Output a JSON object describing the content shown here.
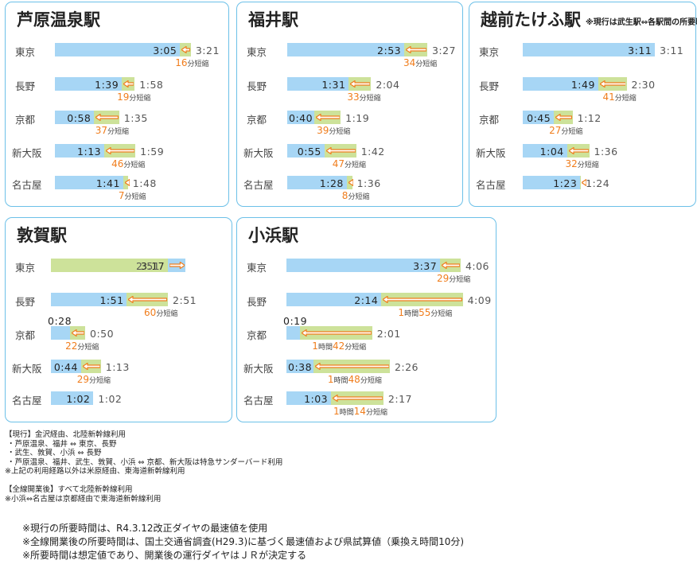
{
  "chart_data": [
    {
      "type": "bar",
      "title": "芦原温泉駅",
      "note": "",
      "categories": [
        "東京",
        "長野",
        "京都",
        "新大阪",
        "名古屋"
      ],
      "series": [
        {
          "name": "現行",
          "values": [
            "3:21",
            "1:58",
            "1:35",
            "1:59",
            "1:48"
          ],
          "minutes": [
            201,
            118,
            95,
            119,
            108
          ]
        },
        {
          "name": "全線開業後",
          "values": [
            "3:05",
            "1:39",
            "0:58",
            "1:13",
            "1:41"
          ],
          "minutes": [
            185,
            99,
            58,
            73,
            101
          ]
        }
      ],
      "saved": [
        {
          "h": "",
          "m": "16",
          "unit": "分短縮"
        },
        {
          "h": "",
          "m": "19",
          "unit": "分短縮"
        },
        {
          "h": "",
          "m": "37",
          "unit": "分短縮"
        },
        {
          "h": "",
          "m": "46",
          "unit": "分短縮"
        },
        {
          "h": "",
          "m": "7",
          "unit": "分短縮"
        }
      ]
    },
    {
      "type": "bar",
      "title": "福井駅",
      "note": "",
      "categories": [
        "東京",
        "長野",
        "京都",
        "新大阪",
        "名古屋"
      ],
      "series": [
        {
          "name": "現行",
          "values": [
            "3:27",
            "2:04",
            "1:19",
            "1:42",
            "1:36"
          ],
          "minutes": [
            207,
            124,
            79,
            102,
            96
          ]
        },
        {
          "name": "全線開業後",
          "values": [
            "2:53",
            "1:31",
            "0:40",
            "0:55",
            "1:28"
          ],
          "minutes": [
            173,
            91,
            40,
            55,
            88
          ]
        }
      ],
      "saved": [
        {
          "h": "",
          "m": "34",
          "unit": "分短縮"
        },
        {
          "h": "",
          "m": "33",
          "unit": "分短縮"
        },
        {
          "h": "",
          "m": "39",
          "unit": "分短縮"
        },
        {
          "h": "",
          "m": "47",
          "unit": "分短縮"
        },
        {
          "h": "",
          "m": "8",
          "unit": "分短縮"
        }
      ]
    },
    {
      "type": "bar",
      "title": "越前たけふ駅",
      "note": "※現行は武生駅⇔各駅間の所要時間",
      "categories": [
        "東京",
        "長野",
        "京都",
        "新大阪",
        "名古屋"
      ],
      "series": [
        {
          "name": "現行",
          "values": [
            "3:11",
            "2:30",
            "1:12",
            "1:36",
            "1:24"
          ],
          "minutes": [
            191,
            150,
            72,
            96,
            84
          ]
        },
        {
          "name": "全線開業後",
          "values": [
            "3:11",
            "1:49",
            "0:45",
            "1:04",
            "1:23"
          ],
          "minutes": [
            191,
            109,
            45,
            64,
            83
          ]
        }
      ],
      "saved": [
        null,
        {
          "h": "",
          "m": "41",
          "unit": "分短縮"
        },
        {
          "h": "",
          "m": "27",
          "unit": "分短縮"
        },
        {
          "h": "",
          "m": "32",
          "unit": "分短縮"
        },
        null
      ]
    },
    {
      "type": "bar",
      "title": "敦賀駅",
      "note": "",
      "categories": [
        "東京",
        "長野",
        "京都",
        "新大阪",
        "名古屋"
      ],
      "series": [
        {
          "name": "現行",
          "values": [
            "2:51",
            "2:51",
            "0:50",
            "1:13",
            "1:02"
          ],
          "minutes": [
            171,
            171,
            50,
            73,
            62
          ]
        },
        {
          "name": "全線開業後",
          "values": [
            "3:17",
            "1:51",
            "0:28",
            "0:44",
            "1:02"
          ],
          "minutes": [
            197,
            111,
            28,
            44,
            62
          ]
        }
      ],
      "saved": [
        null,
        {
          "h": "",
          "m": "60",
          "unit": "分短縮"
        },
        {
          "h": "",
          "m": "22",
          "unit": "分短縮"
        },
        {
          "h": "",
          "m": "29",
          "unit": "分短縮"
        },
        null
      ]
    },
    {
      "type": "bar",
      "title": "小浜駅",
      "note": "",
      "categories": [
        "東京",
        "長野",
        "京都",
        "新大阪",
        "名古屋"
      ],
      "series": [
        {
          "name": "現行",
          "values": [
            "4:06",
            "4:09",
            "2:01",
            "2:26",
            "2:17"
          ],
          "minutes": [
            246,
            249,
            121,
            146,
            137
          ]
        },
        {
          "name": "全線開業後",
          "values": [
            "3:37",
            "2:14",
            "0:19",
            "0:38",
            "1:03"
          ],
          "minutes": [
            217,
            134,
            19,
            38,
            63
          ]
        }
      ],
      "saved": [
        {
          "h": "",
          "m": "29",
          "unit": "分短縮"
        },
        {
          "h": "1",
          "m": "55",
          "unit": "分短縮"
        },
        {
          "h": "1",
          "m": "42",
          "unit": "分短縮"
        },
        {
          "h": "1",
          "m": "48",
          "unit": "分短縮"
        },
        {
          "h": "1",
          "m": "14",
          "unit": "分短縮"
        }
      ]
    }
  ],
  "hour_label": "時間",
  "notes": "【現行】金沢経由、北陸新幹線利用\n ・芦原温泉、福井 ⇔ 東京、長野\n ・武生、敦賀、小浜 ⇔ 長野\n ・芦原温泉、福井、武生、敦賀、小浜 ⇔ 京都、新大阪は特急サンダーバード利用\n※上記の利用経路以外は米原経由、東海道新幹線利用\n\n【全線開業後】すべて北陸新幹線利用\n※小浜⇔名古屋は京都経由で東海道新幹線利用",
  "footnotes": "※現行の所要時間は、R4.3.12改正ダイヤの最速値を使用\n※全線開業後の所要時間は、国土交通省調査(H29.3)に基づく最速値および県試算値（乗換え時間10分)\n※所要時間は想定値であり、開業後の運行ダイヤはＪＲが決定する",
  "colors": {
    "current": "#cde29a",
    "future": "#a7d6f5",
    "arrow": "#f07d1c",
    "border": "#6cc0e8"
  }
}
